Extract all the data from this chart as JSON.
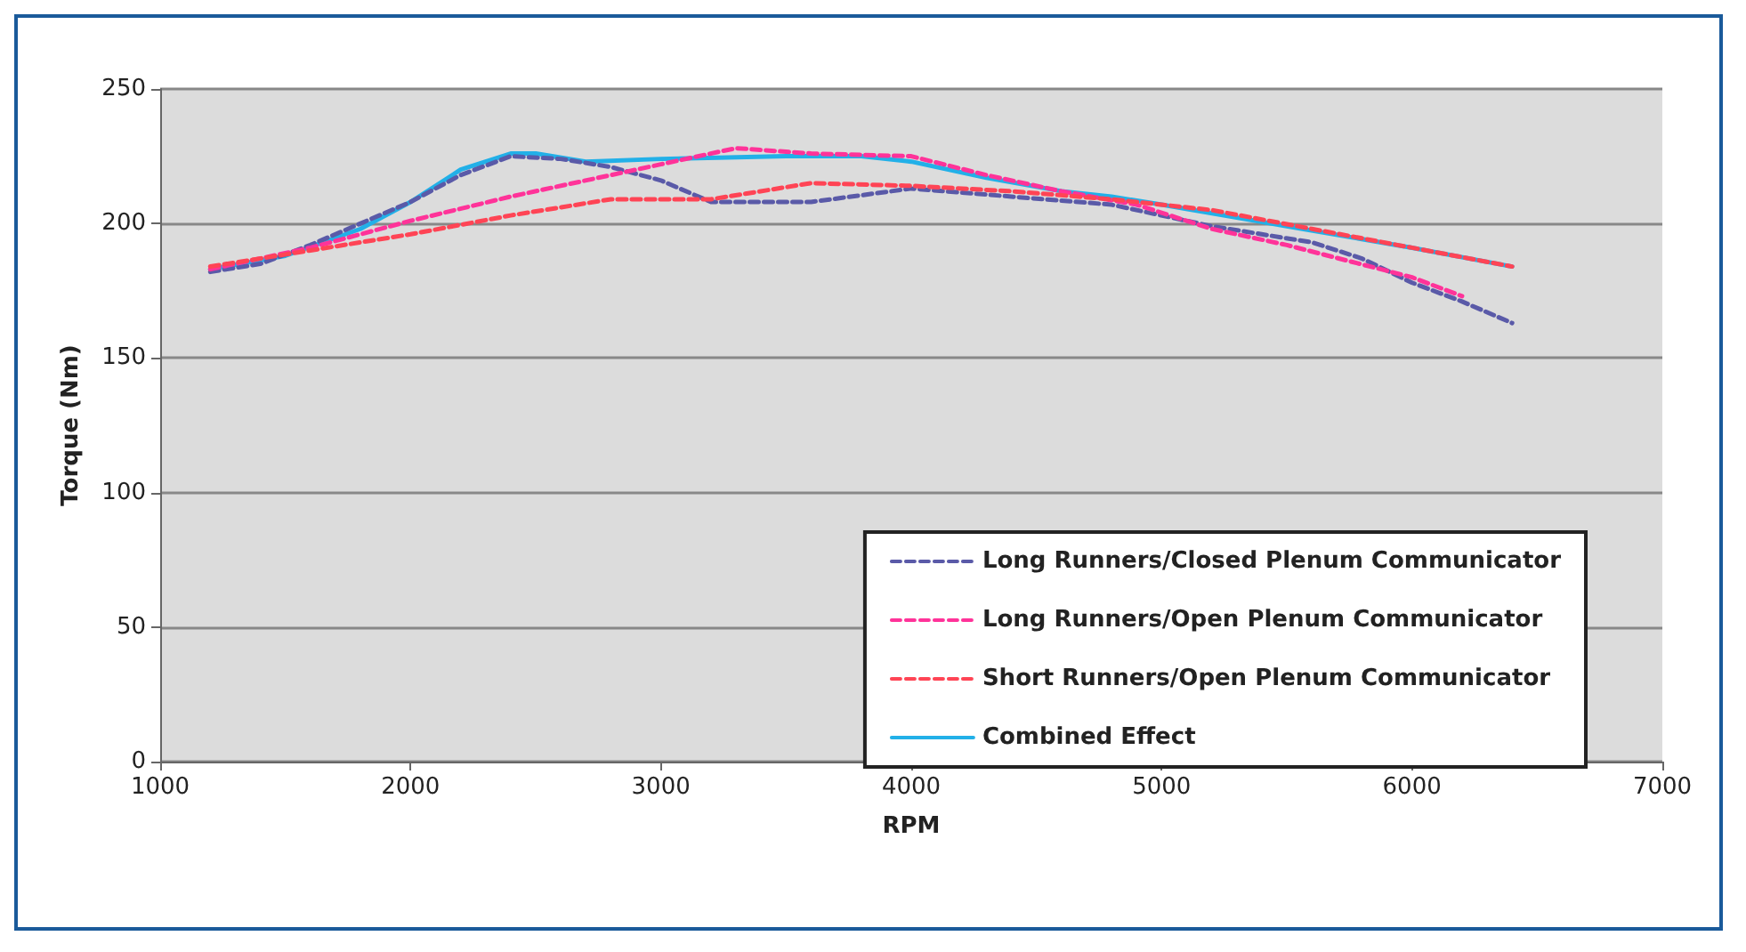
{
  "chart_data": {
    "type": "line",
    "xlabel": "RPM",
    "ylabel": "Torque (Nm)",
    "xlim": [
      1000,
      7000
    ],
    "xticks": [
      1000,
      2000,
      3000,
      4000,
      5000,
      6000,
      7000
    ],
    "ylim": [
      0,
      250
    ],
    "yticks": [
      0,
      50,
      100,
      150,
      200,
      250
    ],
    "grid": "y",
    "legend": "bottom right",
    "marker": "none",
    "series": [
      {
        "name": "Long Runners/Closed Plenum Communicator",
        "color": "#5a5aa8",
        "line_style": "dashed",
        "x": [
          1200,
          1400,
          1600,
          2000,
          2200,
          2400,
          2600,
          2800,
          3000,
          3200,
          3600,
          4000,
          4400,
          4800,
          5200,
          5600,
          5800,
          6000,
          6200,
          6400
        ],
        "values": [
          182,
          185,
          192,
          208,
          218,
          225,
          224,
          221,
          216,
          208,
          208,
          213,
          210,
          207,
          199,
          193,
          187,
          178,
          171,
          163
        ]
      },
      {
        "name": "Long Runners/Open Plenum Communicator",
        "color": "#ff3399",
        "line_style": "dashed",
        "x": [
          1200,
          1600,
          2000,
          2400,
          2800,
          3000,
          3300,
          3600,
          4000,
          4300,
          4600,
          4900,
          5200,
          5500,
          6000,
          6200
        ],
        "values": [
          183,
          191,
          201,
          210,
          218,
          222,
          228,
          226,
          225,
          218,
          212,
          207,
          198,
          192,
          180,
          173
        ]
      },
      {
        "name": "Short Runners/Open Plenum Communicator",
        "color": "#ff4455",
        "line_style": "dashed",
        "x": [
          1200,
          1600,
          2000,
          2400,
          2800,
          3200,
          3600,
          4000,
          4400,
          4800,
          5200,
          5600,
          6000,
          6400
        ],
        "values": [
          184,
          190,
          196,
          203,
          209,
          209,
          215,
          214,
          212,
          209,
          205,
          198,
          191,
          184
        ]
      },
      {
        "name": "Combined Effect",
        "color": "#22b0e8",
        "line_style": "solid",
        "x": [
          1200,
          1500,
          1800,
          2000,
          2200,
          2400,
          2500,
          2700,
          3000,
          3500,
          3800,
          4000,
          4300,
          4600,
          4800,
          5000,
          5500,
          6000,
          6400
        ],
        "values": [
          183,
          188,
          198,
          208,
          220,
          226,
          226,
          223,
          224,
          225,
          225,
          223,
          217,
          212,
          210,
          207,
          199,
          191,
          184
        ]
      }
    ]
  }
}
